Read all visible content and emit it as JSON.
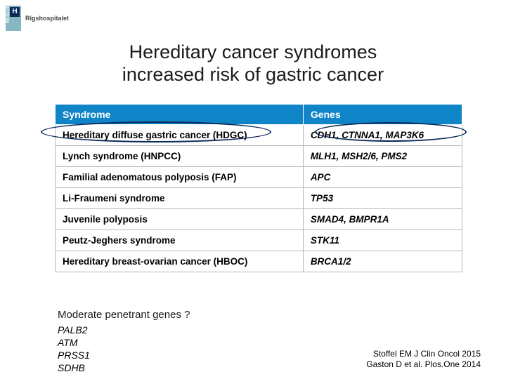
{
  "logo": {
    "region_label": "REGION",
    "h_letter": "H",
    "hospital": "Rigshospitalet"
  },
  "title_line1": "Hereditary cancer syndromes",
  "title_line2": "increased risk of gastric cancer",
  "table": {
    "header_bg": "#0f85c8",
    "header_fg": "#ffffff",
    "border_color": "#b8b8b8",
    "columns": [
      "Syndrome",
      "Genes"
    ],
    "rows": [
      [
        "Hereditary diffuse gastric cancer (HDGC)",
        "CDH1, CTNNA1, MAP3K6"
      ],
      [
        "Lynch syndrome (HNPCC)",
        "MLH1, MSH2/6, PMS2"
      ],
      [
        "Familial adenomatous polyposis (FAP)",
        "APC"
      ],
      [
        "Li-Fraumeni syndrome",
        "TP53"
      ],
      [
        "Juvenile polyposis",
        "SMAD4, BMPR1A"
      ],
      [
        "Peutz-Jeghers syndrome",
        "STK11"
      ],
      [
        "Hereditary breast-ovarian cancer (HBOC)",
        "BRCA1/2"
      ]
    ]
  },
  "moderate_heading": "Moderate penetrant genes ?",
  "moderate_genes": [
    "PALB2",
    "ATM",
    "PRSS1",
    "SDHB"
  ],
  "citation_line1": "Stoffel EM J Clin Oncol 2015",
  "citation_line2": "Gaston D et al. Plos.One 2014",
  "highlight_color": "#0a2a5a"
}
